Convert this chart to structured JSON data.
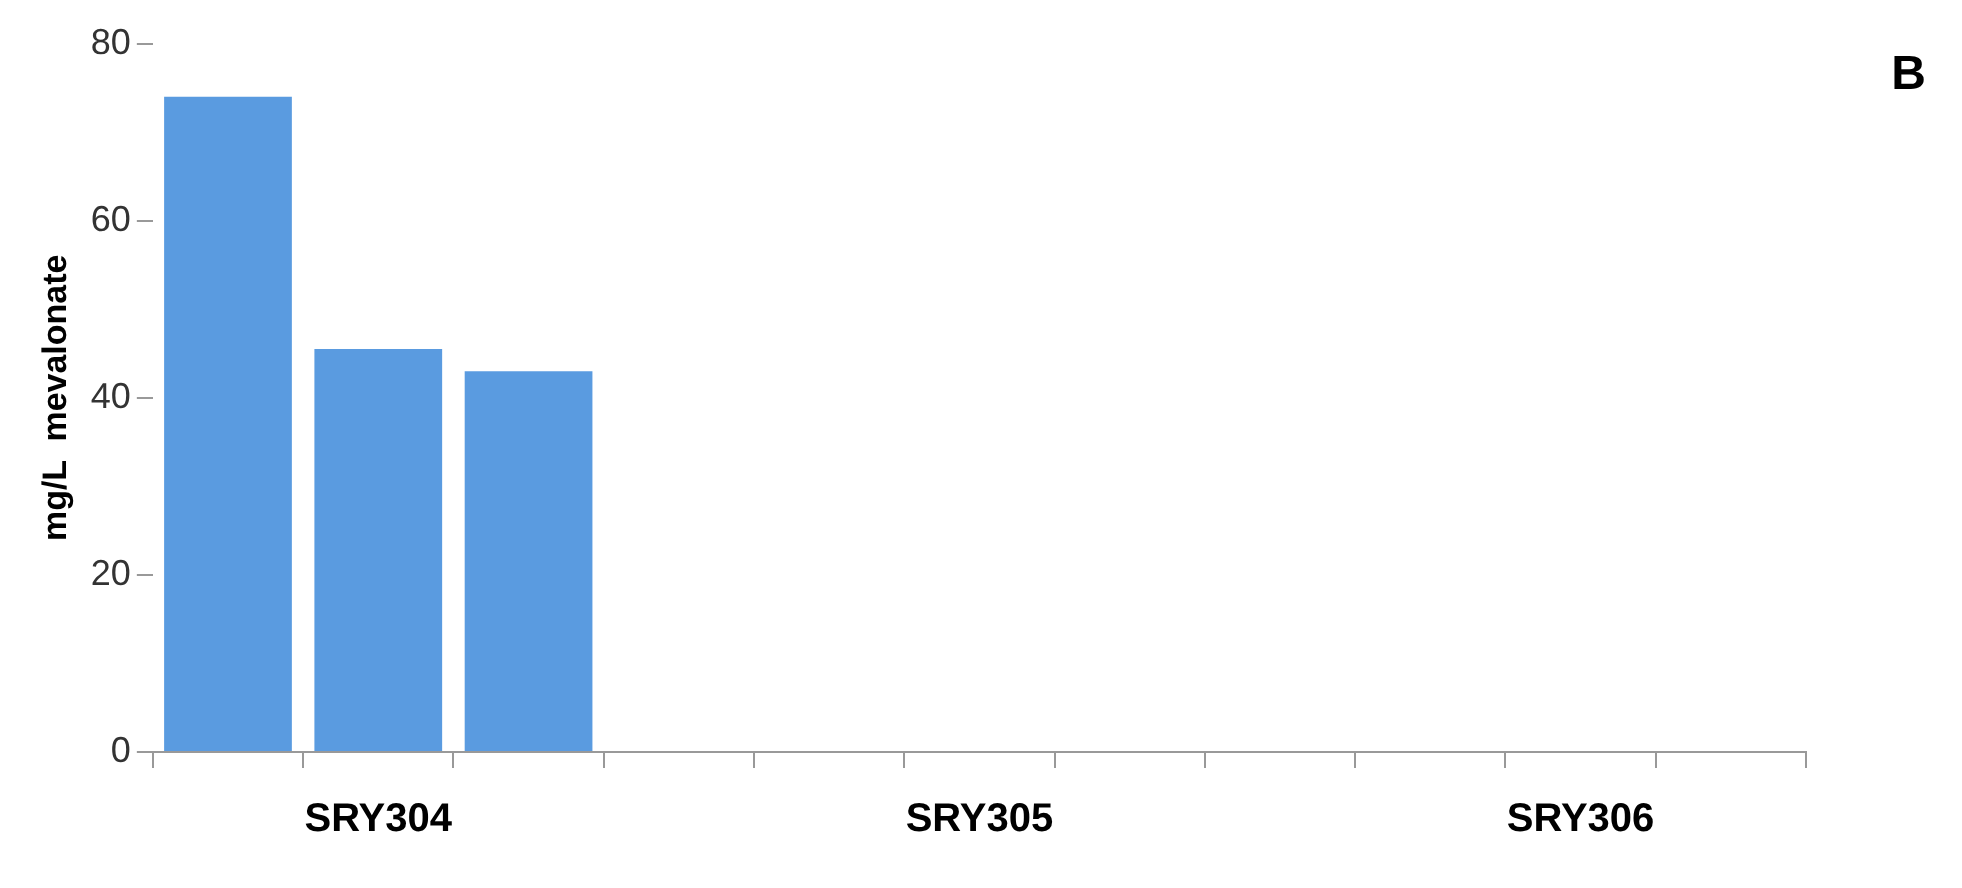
{
  "chart_data": {
    "type": "bar",
    "ylabel": "mg/L  mevalonate",
    "categories": [
      null,
      "SRY304",
      null,
      null,
      null,
      "SRY305",
      null,
      null,
      null,
      "SRY306",
      null
    ],
    "values": [
      74,
      45.5,
      43,
      null,
      0,
      0,
      0,
      null,
      0,
      0,
      0
    ],
    "color": "#5a9be0",
    "ylim": [
      0,
      80
    ],
    "yticks": [
      0,
      20,
      40,
      60,
      80
    ],
    "grid": false,
    "legend": false,
    "annotations": [
      "B"
    ]
  }
}
